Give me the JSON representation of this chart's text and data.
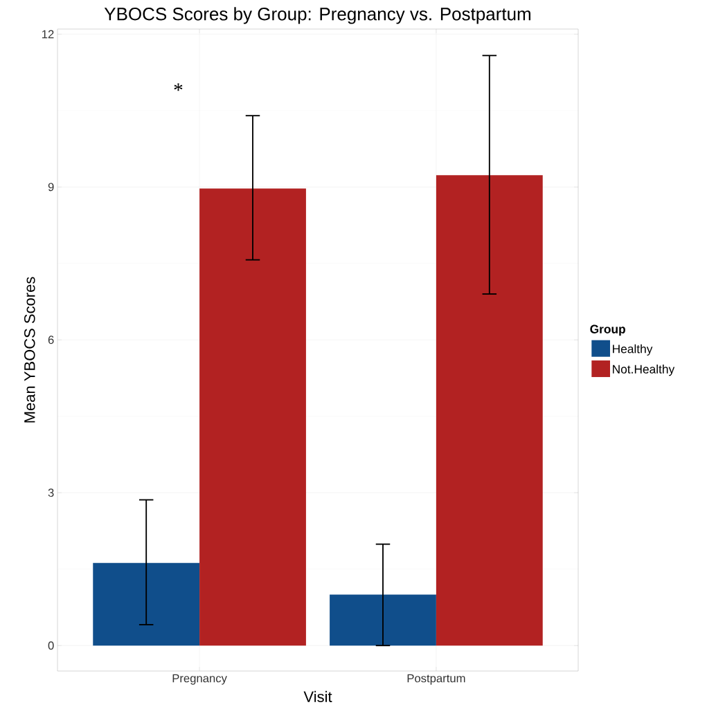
{
  "chart_data": {
    "type": "bar",
    "title": "YBOCS Scores by Group: Pregnancy vs. Postpartum",
    "xlabel": "Visit",
    "ylabel": "Mean YBOCS Scores",
    "legend_title": "Group",
    "categories": [
      "Pregnancy",
      "Postpartum"
    ],
    "series": [
      {
        "name": "Healthy",
        "color": "#104e8b",
        "values": [
          1.62,
          1.0
        ],
        "errors": [
          [
            0.41,
            2.86
          ],
          [
            0.0,
            1.99
          ]
        ]
      },
      {
        "name": "Not.Healthy",
        "color": "#b22222",
        "values": [
          8.97,
          9.23
        ],
        "errors": [
          [
            7.57,
            10.4
          ],
          [
            6.9,
            11.58
          ]
        ]
      }
    ],
    "ylim": [
      -0.5,
      12.1
    ],
    "yticks": [
      0,
      3,
      6,
      9,
      12
    ],
    "grid": true,
    "legend": "right",
    "annotations": [
      "*"
    ]
  }
}
